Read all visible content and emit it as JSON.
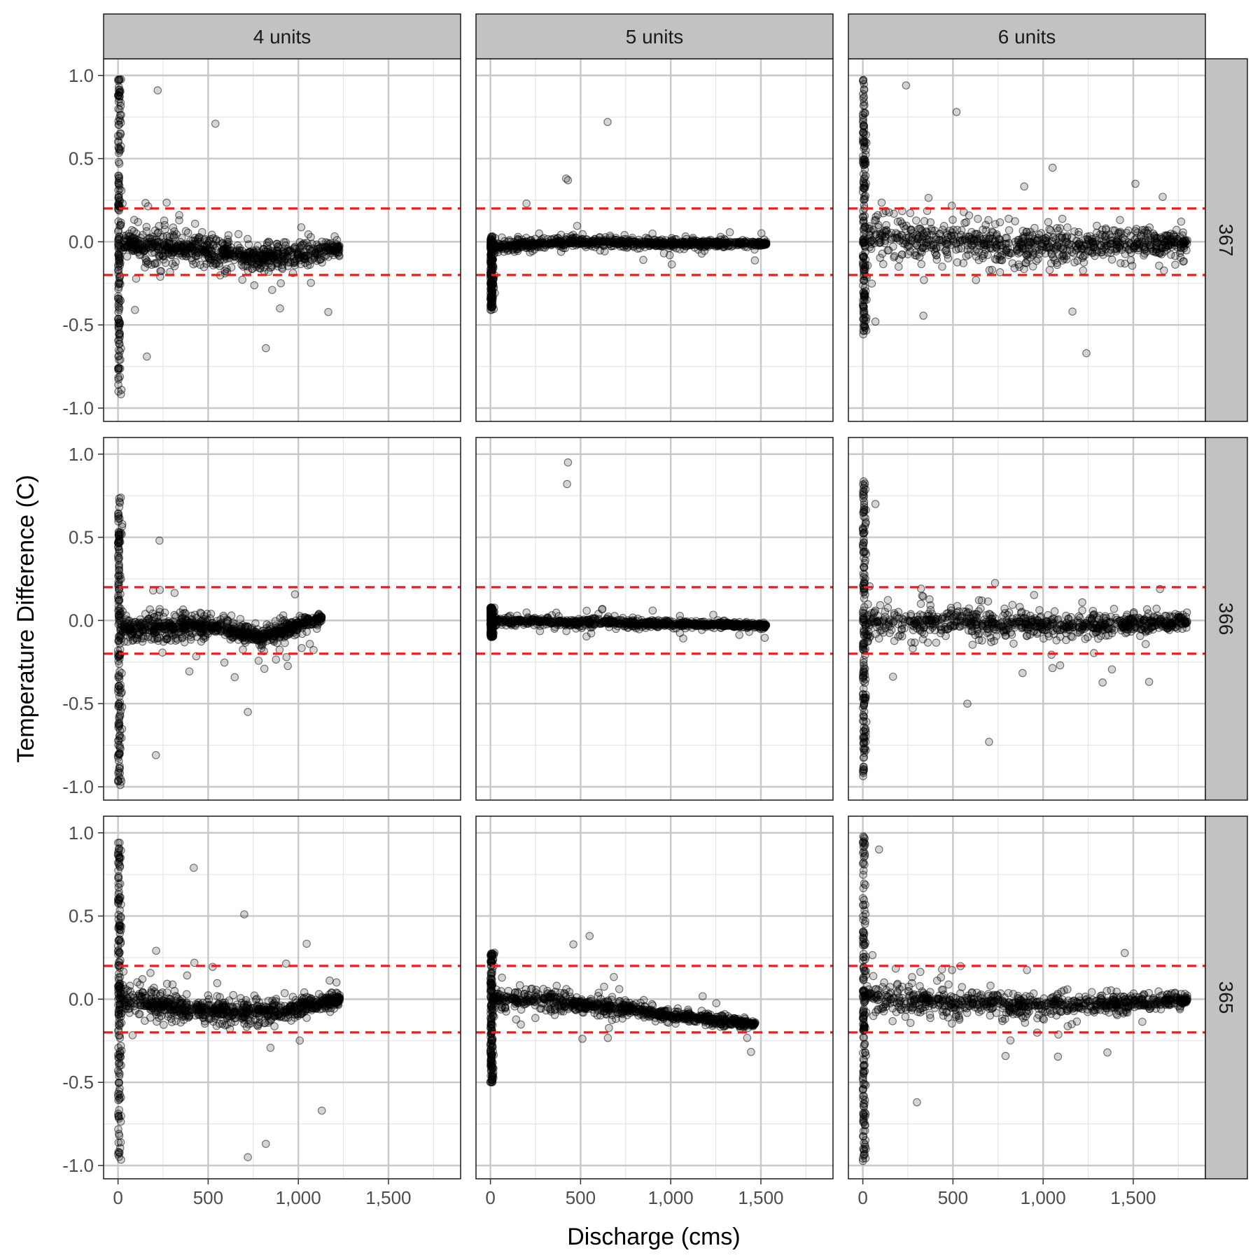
{
  "chart_data": {
    "type": "scatter",
    "xlabel": "Discharge (cms)",
    "ylabel": "Temperature Difference (C)",
    "col_facets": [
      "4 units",
      "5 units",
      "6 units"
    ],
    "row_facets": [
      "367",
      "366",
      "365"
    ],
    "xlim": [
      -80,
      1900
    ],
    "ylim": [
      -1.08,
      1.1
    ],
    "x_ticks": [
      0,
      500,
      1000,
      1500
    ],
    "x_tick_labels": [
      "0",
      "500",
      "1,000",
      "1,500"
    ],
    "y_ticks": [
      -1.0,
      -0.5,
      0.0,
      0.5,
      1.0
    ],
    "y_tick_labels": [
      "-1.0",
      "-0.5",
      "0.0",
      "0.5",
      "1.0"
    ],
    "reference_lines_y": [
      0.2,
      -0.2
    ],
    "reference_line_color": "#ee1c1c",
    "point_color": "#000000",
    "grid": true,
    "panels": [
      {
        "row": "367",
        "col": "4 units",
        "x_max": 1230,
        "low_q_range": [
          -0.92,
          0.98
        ],
        "spread": 0.09,
        "summary": [
          {
            "x": 0,
            "y": -0.02
          },
          {
            "x": 250,
            "y": -0.03
          },
          {
            "x": 500,
            "y": -0.05
          },
          {
            "x": 800,
            "y": -0.1
          },
          {
            "x": 1230,
            "y": -0.04
          }
        ],
        "outliers": [
          {
            "x": 220,
            "y": 0.91
          },
          {
            "x": 540,
            "y": 0.71
          },
          {
            "x": 160,
            "y": -0.69
          },
          {
            "x": 820,
            "y": -0.64
          }
        ]
      },
      {
        "row": "367",
        "col": "5 units",
        "x_max": 1530,
        "low_q_range": [
          -0.41,
          0.04
        ],
        "spread": 0.03,
        "summary": [
          {
            "x": 0,
            "y": -0.03
          },
          {
            "x": 500,
            "y": 0.0
          },
          {
            "x": 1000,
            "y": -0.01
          },
          {
            "x": 1530,
            "y": -0.01
          }
        ],
        "outliers": [
          {
            "x": 650,
            "y": 0.72
          },
          {
            "x": 420,
            "y": 0.38
          },
          {
            "x": 430,
            "y": 0.37
          },
          {
            "x": 200,
            "y": 0.23
          }
        ]
      },
      {
        "row": "367",
        "col": "6 units",
        "x_max": 1800,
        "low_q_range": [
          -0.58,
          0.99
        ],
        "spread": 0.13,
        "summary": [
          {
            "x": 0,
            "y": 0.02
          },
          {
            "x": 500,
            "y": 0.0
          },
          {
            "x": 1000,
            "y": -0.02
          },
          {
            "x": 1500,
            "y": -0.01
          },
          {
            "x": 1800,
            "y": 0.0
          }
        ],
        "outliers": [
          {
            "x": 240,
            "y": 0.94
          },
          {
            "x": 520,
            "y": 0.78
          },
          {
            "x": 1240,
            "y": -0.67
          }
        ]
      },
      {
        "row": "366",
        "col": "4 units",
        "x_max": 1130,
        "low_q_range": [
          -0.99,
          0.76
        ],
        "spread": 0.07,
        "summary": [
          {
            "x": 0,
            "y": -0.05
          },
          {
            "x": 250,
            "y": -0.04
          },
          {
            "x": 500,
            "y": -0.03
          },
          {
            "x": 800,
            "y": -0.1
          },
          {
            "x": 1130,
            "y": 0.02
          }
        ],
        "outliers": [
          {
            "x": 230,
            "y": 0.48
          },
          {
            "x": 210,
            "y": -0.81
          },
          {
            "x": 720,
            "y": -0.55
          }
        ]
      },
      {
        "row": "366",
        "col": "5 units",
        "x_max": 1530,
        "low_q_range": [
          -0.1,
          0.08
        ],
        "spread": 0.025,
        "summary": [
          {
            "x": 0,
            "y": 0.0
          },
          {
            "x": 500,
            "y": -0.01
          },
          {
            "x": 1000,
            "y": -0.02
          },
          {
            "x": 1530,
            "y": -0.03
          }
        ],
        "outliers": [
          {
            "x": 430,
            "y": 0.95
          },
          {
            "x": 425,
            "y": 0.82
          }
        ]
      },
      {
        "row": "366",
        "col": "6 units",
        "x_max": 1800,
        "low_q_range": [
          -0.95,
          0.84
        ],
        "spread": 0.09,
        "summary": [
          {
            "x": 0,
            "y": -0.02
          },
          {
            "x": 500,
            "y": 0.0
          },
          {
            "x": 1000,
            "y": -0.03
          },
          {
            "x": 1500,
            "y": -0.02
          },
          {
            "x": 1800,
            "y": -0.01
          }
        ],
        "outliers": [
          {
            "x": 70,
            "y": 0.7
          },
          {
            "x": 700,
            "y": -0.73
          },
          {
            "x": 580,
            "y": -0.5
          }
        ]
      },
      {
        "row": "365",
        "col": "4 units",
        "x_max": 1230,
        "low_q_range": [
          -0.98,
          0.98
        ],
        "spread": 0.08,
        "summary": [
          {
            "x": 0,
            "y": 0.0
          },
          {
            "x": 300,
            "y": -0.05
          },
          {
            "x": 600,
            "y": -0.07
          },
          {
            "x": 900,
            "y": -0.07
          },
          {
            "x": 1230,
            "y": 0.0
          }
        ],
        "outliers": [
          {
            "x": 420,
            "y": 0.79
          },
          {
            "x": 700,
            "y": 0.51
          },
          {
            "x": 720,
            "y": -0.95
          },
          {
            "x": 820,
            "y": -0.87
          },
          {
            "x": 1130,
            "y": -0.67
          }
        ]
      },
      {
        "row": "365",
        "col": "5 units",
        "x_max": 1470,
        "low_q_range": [
          -0.5,
          0.28
        ],
        "spread": 0.05,
        "summary": [
          {
            "x": 0,
            "y": 0.0
          },
          {
            "x": 300,
            "y": 0.0
          },
          {
            "x": 700,
            "y": -0.05
          },
          {
            "x": 1000,
            "y": -0.1
          },
          {
            "x": 1470,
            "y": -0.15
          }
        ],
        "outliers": [
          {
            "x": 550,
            "y": 0.38
          },
          {
            "x": 460,
            "y": 0.33
          },
          {
            "x": 0,
            "y": -0.5
          }
        ]
      },
      {
        "row": "365",
        "col": "6 units",
        "x_max": 1800,
        "low_q_range": [
          -0.99,
          0.99
        ],
        "spread": 0.08,
        "summary": [
          {
            "x": 0,
            "y": 0.02
          },
          {
            "x": 500,
            "y": -0.02
          },
          {
            "x": 1000,
            "y": -0.04
          },
          {
            "x": 1500,
            "y": -0.02
          },
          {
            "x": 1800,
            "y": 0.0
          }
        ],
        "outliers": [
          {
            "x": 300,
            "y": -0.62
          },
          {
            "x": 90,
            "y": 0.9
          }
        ]
      }
    ]
  }
}
